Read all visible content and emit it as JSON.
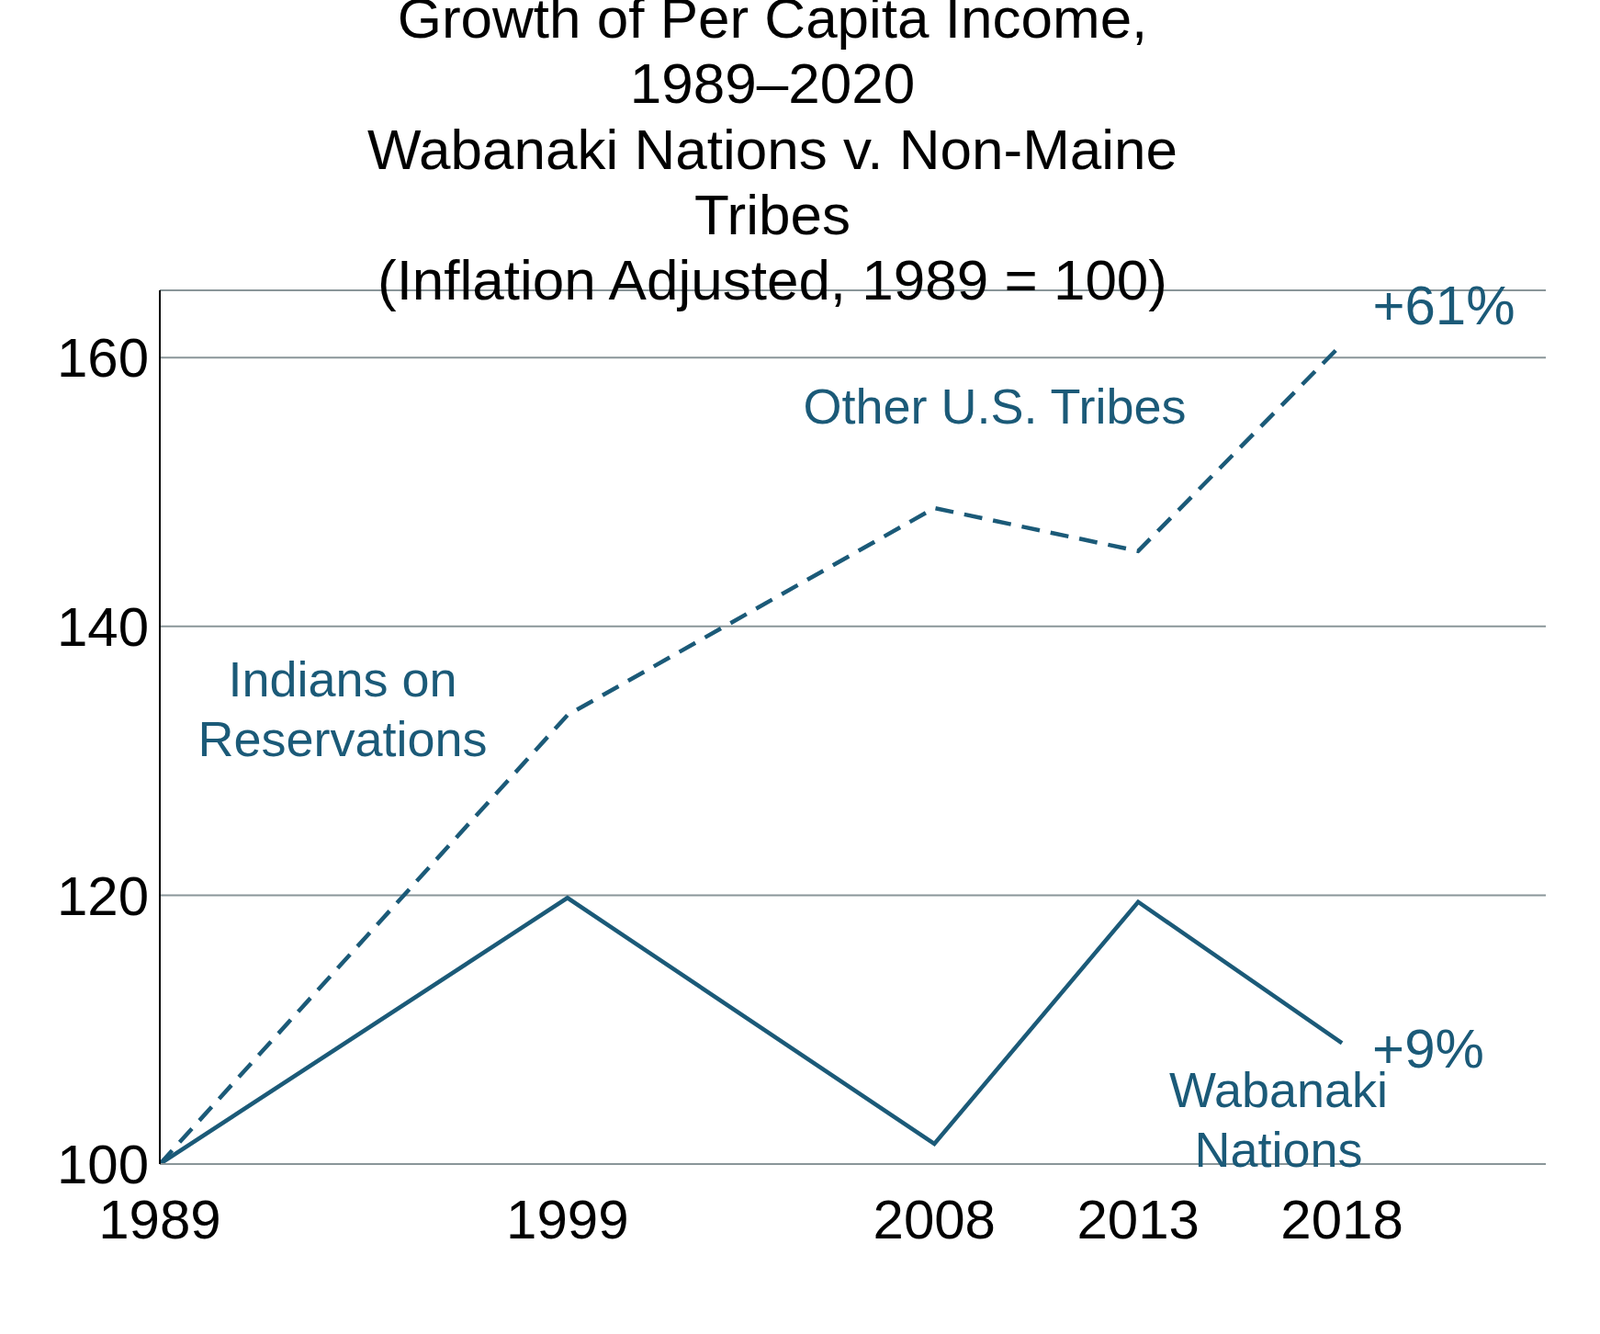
{
  "chart_data": {
    "type": "line",
    "title": "Growth of Per Capita Income, 1989–2020\nWabanaki Nations v. Non-Maine Tribes\n(Inflation Adjusted, 1989 = 100)",
    "x": [
      1989,
      1999,
      2008,
      2013,
      2018
    ],
    "xlim": [
      1989,
      2023
    ],
    "xticks": [
      1989,
      1999,
      2008,
      2013,
      2018
    ],
    "ylim": [
      100,
      165
    ],
    "yticks": [
      100,
      120,
      140,
      160
    ],
    "grid": true,
    "series": [
      {
        "name": "Other U.S. Tribes",
        "color": "#1b5a78",
        "line_style": "dashed",
        "values": [
          100,
          133.4,
          148.8,
          145.6,
          161
        ]
      },
      {
        "name": "Wabanaki Nations",
        "color": "#1b5a78",
        "line_style": "solid",
        "values": [
          100,
          119.8,
          101.5,
          119.5,
          109
        ]
      }
    ],
    "annotations": [
      {
        "text": "+61%"
      },
      {
        "text": "Indians on\nReservations"
      },
      {
        "text": "+9%"
      }
    ]
  }
}
